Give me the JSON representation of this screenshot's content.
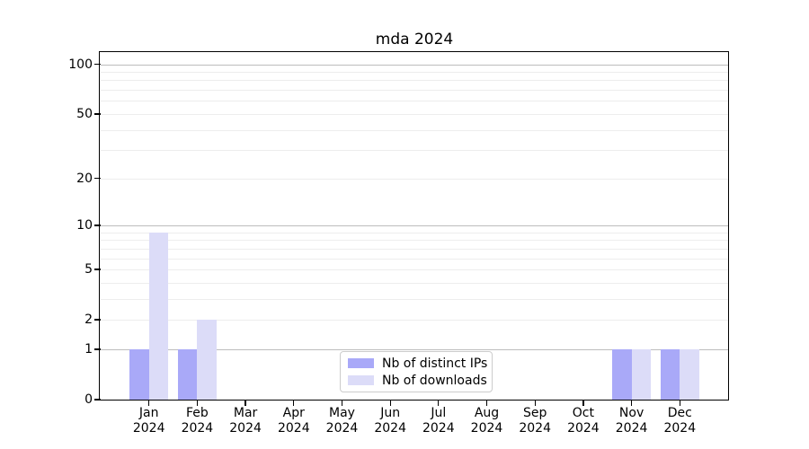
{
  "title": "mda 2024",
  "chart_data": {
    "type": "bar",
    "title": "mda 2024",
    "categories": [
      "Jan 2024",
      "Feb 2024",
      "Mar 2024",
      "Apr 2024",
      "May 2024",
      "Jun 2024",
      "Jul 2024",
      "Aug 2024",
      "Sep 2024",
      "Oct 2024",
      "Nov 2024",
      "Dec 2024"
    ],
    "series": [
      {
        "name": "Nb of distinct IPs",
        "color": "#a9a9f8",
        "values": [
          1,
          1,
          0,
          0,
          0,
          0,
          0,
          0,
          0,
          0,
          1,
          1
        ]
      },
      {
        "name": "Nb of downloads",
        "color": "#dcdcf8",
        "values": [
          9,
          2,
          0,
          0,
          0,
          0,
          0,
          0,
          0,
          0,
          1,
          1
        ]
      }
    ],
    "xlabel": "",
    "ylabel": "",
    "y_scale": "log1p",
    "ylim": [
      0,
      117
    ],
    "y_ticks": [
      0,
      1,
      2,
      5,
      10,
      20,
      50,
      100
    ],
    "grid_major_lines": [
      1,
      10,
      100
    ],
    "grid_minor_lines": [
      2,
      3,
      4,
      5,
      6,
      7,
      8,
      9,
      20,
      30,
      40,
      50,
      60,
      70,
      80,
      90
    ],
    "legend_position": "lower center",
    "colors": {
      "grid_major": "#bdbdbd",
      "grid_minor": "#ededed",
      "axis": "#000000",
      "background": "#ffffff"
    }
  }
}
